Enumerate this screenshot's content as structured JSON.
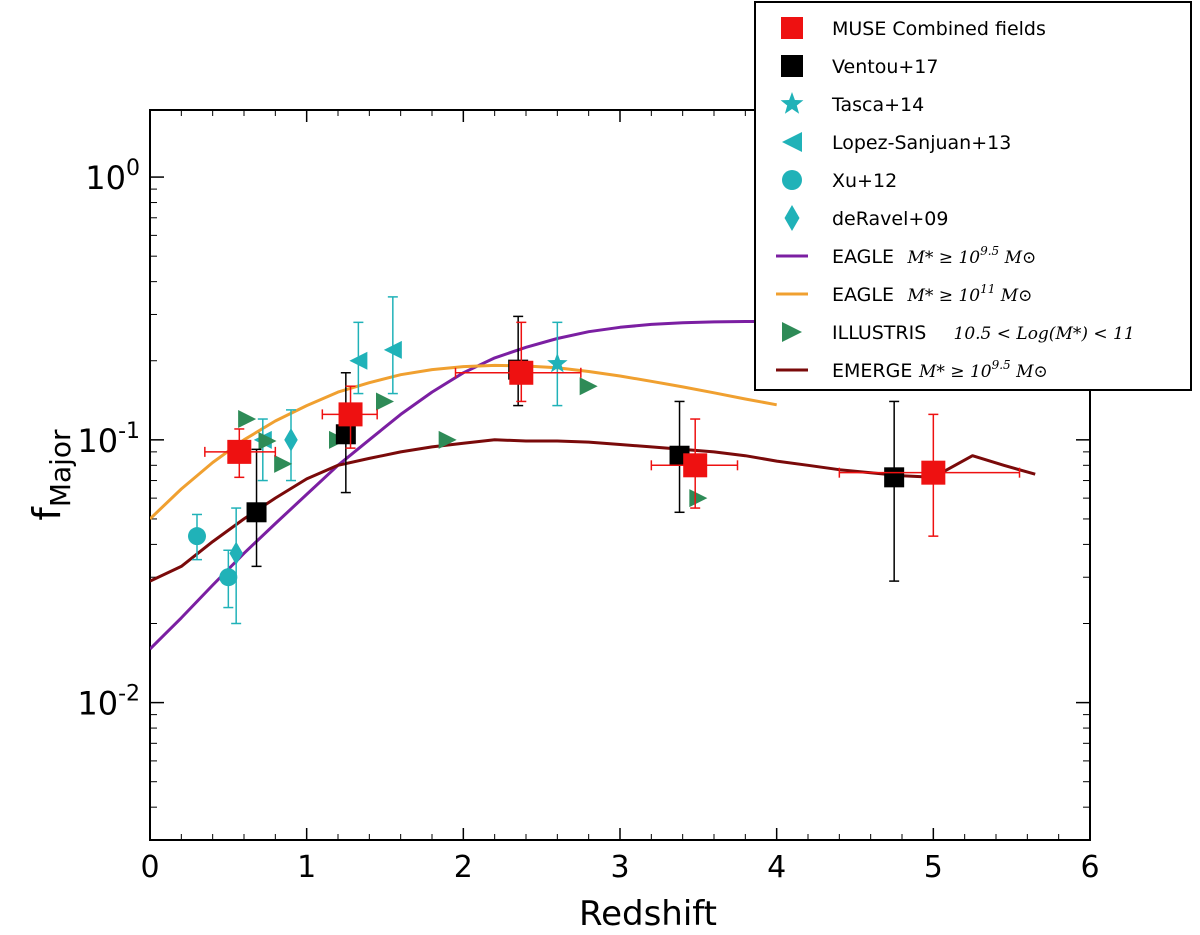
{
  "chart_data": {
    "type": "scatter",
    "xlabel": "Redshift",
    "ylabel": "f",
    "ylabel_sub": "Major",
    "xlim": [
      0,
      6
    ],
    "ylim": [
      0.003,
      1.8
    ],
    "yscale": "log",
    "x_ticks": [
      "0",
      "1",
      "2",
      "3",
      "4",
      "5",
      "6"
    ],
    "y_ticks": [
      {
        "value": 1,
        "base": "10",
        "exp": "0"
      },
      {
        "value": 0.1,
        "base": "10",
        "exp": "-1"
      },
      {
        "value": 0.01,
        "base": "10",
        "exp": "-2"
      }
    ],
    "legend_position": "top-right",
    "legend": [
      {
        "label": "MUSE Combined fields",
        "color": "#ee1111",
        "marker": "square"
      },
      {
        "label": "Ventou+17",
        "color": "#000000",
        "marker": "square"
      },
      {
        "label": "Tasca+14",
        "color": "#20b2b8",
        "marker": "star"
      },
      {
        "label": "Lopez-Sanjuan+13",
        "color": "#20b2b8",
        "marker": "triangle-left"
      },
      {
        "label": "Xu+12",
        "color": "#20b2b8",
        "marker": "circle"
      },
      {
        "label": "deRavel+09",
        "color": "#20b2b8",
        "marker": "diamond"
      },
      {
        "label": "EAGLE",
        "math": "M* ≥ 10^9.5 M⊙",
        "color": "#7b1fa2",
        "marker": "line"
      },
      {
        "label": "EAGLE",
        "math": "M* ≥ 10^11 M⊙",
        "color": "#f0a030",
        "marker": "line"
      },
      {
        "label": "ILLUSTRIS",
        "math": "10.5 < Log(M*) < 11",
        "color": "#2e8b57",
        "marker": "triangle-right"
      },
      {
        "label": "EMERGE",
        "math": "M* ≥ 10^9.5 M⊙",
        "color": "#7a0a0a",
        "marker": "line"
      }
    ],
    "series": [
      {
        "name": "MUSE Combined fields",
        "marker": "square",
        "color": "#ee1111",
        "points": [
          {
            "x": 0.57,
            "y": 0.09,
            "xlo": 0.35,
            "xhi": 0.8,
            "ylo": 0.072,
            "yhi": 0.11
          },
          {
            "x": 1.28,
            "y": 0.125,
            "xlo": 1.1,
            "xhi": 1.45,
            "ylo": 0.093,
            "yhi": 0.16
          },
          {
            "x": 2.37,
            "y": 0.18,
            "xlo": 1.95,
            "xhi": 2.75,
            "ylo": 0.14,
            "yhi": 0.28
          },
          {
            "x": 3.48,
            "y": 0.08,
            "xlo": 3.2,
            "xhi": 3.75,
            "ylo": 0.055,
            "yhi": 0.12
          },
          {
            "x": 5.0,
            "y": 0.075,
            "xlo": 4.4,
            "xhi": 5.55,
            "ylo": 0.043,
            "yhi": 0.125
          }
        ]
      },
      {
        "name": "Ventou+17",
        "marker": "square",
        "color": "#000000",
        "points": [
          {
            "x": 0.68,
            "y": 0.053,
            "ylo": 0.033,
            "yhi": 0.092
          },
          {
            "x": 1.25,
            "y": 0.105,
            "ylo": 0.063,
            "yhi": 0.18
          },
          {
            "x": 2.35,
            "y": 0.185,
            "ylo": 0.135,
            "yhi": 0.295
          },
          {
            "x": 3.38,
            "y": 0.087,
            "ylo": 0.053,
            "yhi": 0.14
          },
          {
            "x": 4.75,
            "y": 0.072,
            "ylo": 0.029,
            "yhi": 0.14
          }
        ]
      },
      {
        "name": "Tasca+14",
        "marker": "star",
        "color": "#20b2b8",
        "points": [
          {
            "x": 2.6,
            "y": 0.195,
            "ylo": 0.135,
            "yhi": 0.28
          }
        ]
      },
      {
        "name": "Lopez-Sanjuan+13",
        "marker": "triangle-left",
        "color": "#20b2b8",
        "points": [
          {
            "x": 1.33,
            "y": 0.2,
            "ylo": 0.15,
            "yhi": 0.28
          },
          {
            "x": 1.55,
            "y": 0.22,
            "ylo": 0.15,
            "yhi": 0.35
          },
          {
            "x": 0.72,
            "y": 0.1,
            "ylo": 0.07,
            "yhi": 0.12
          }
        ]
      },
      {
        "name": "Xu+12",
        "marker": "circle",
        "color": "#20b2b8",
        "points": [
          {
            "x": 0.3,
            "y": 0.043,
            "ylo": 0.035,
            "yhi": 0.052
          },
          {
            "x": 0.5,
            "y": 0.03,
            "ylo": 0.023,
            "yhi": 0.038
          }
        ]
      },
      {
        "name": "deRavel+09",
        "marker": "diamond",
        "color": "#20b2b8",
        "points": [
          {
            "x": 0.55,
            "y": 0.037,
            "ylo": 0.02,
            "yhi": 0.055
          },
          {
            "x": 0.9,
            "y": 0.1,
            "ylo": 0.07,
            "yhi": 0.13
          }
        ]
      },
      {
        "name": "ILLUSTRIS",
        "marker": "triangle-right",
        "color": "#2e8b57",
        "points": [
          {
            "x": 0.62,
            "y": 0.12
          },
          {
            "x": 0.75,
            "y": 0.099
          },
          {
            "x": 0.85,
            "y": 0.081
          },
          {
            "x": 1.2,
            "y": 0.1
          },
          {
            "x": 1.5,
            "y": 0.14
          },
          {
            "x": 1.9,
            "y": 0.1
          },
          {
            "x": 2.8,
            "y": 0.16
          },
          {
            "x": 3.5,
            "y": 0.06
          }
        ]
      },
      {
        "name": "EAGLE",
        "type": "line",
        "color": "#7b1fa2",
        "x": [
          0,
          0.2,
          0.4,
          0.6,
          0.8,
          1.0,
          1.2,
          1.4,
          1.6,
          1.8,
          2.0,
          2.2,
          2.4,
          2.6,
          2.8,
          3.0,
          3.2,
          3.4,
          3.6,
          3.8,
          4.0
        ],
        "y": [
          0.016,
          0.021,
          0.028,
          0.037,
          0.048,
          0.062,
          0.08,
          0.1,
          0.125,
          0.152,
          0.18,
          0.205,
          0.225,
          0.243,
          0.258,
          0.268,
          0.275,
          0.279,
          0.281,
          0.282,
          0.282
        ]
      },
      {
        "name": "EAGLE",
        "type": "line",
        "color": "#f0a030",
        "x": [
          0,
          0.2,
          0.4,
          0.6,
          0.8,
          1.0,
          1.2,
          1.4,
          1.6,
          1.8,
          2.0,
          2.2,
          2.4,
          2.6,
          2.8,
          3.0,
          3.2,
          3.4,
          3.6,
          3.8,
          4.0
        ],
        "y": [
          0.05,
          0.065,
          0.082,
          0.1,
          0.118,
          0.135,
          0.152,
          0.165,
          0.177,
          0.185,
          0.19,
          0.192,
          0.191,
          0.188,
          0.182,
          0.175,
          0.167,
          0.159,
          0.151,
          0.143,
          0.136
        ]
      },
      {
        "name": "EMERGE",
        "type": "line",
        "color": "#7a0a0a",
        "x": [
          0,
          0.2,
          0.4,
          0.6,
          0.8,
          1.0,
          1.2,
          1.4,
          1.6,
          1.8,
          2.0,
          2.2,
          2.4,
          2.6,
          2.8,
          3.0,
          3.2,
          3.4,
          3.6,
          3.8,
          4.0,
          4.2,
          4.4,
          4.6,
          4.8,
          5.0,
          5.25,
          5.45,
          5.65
        ],
        "y": [
          0.029,
          0.033,
          0.041,
          0.05,
          0.06,
          0.071,
          0.08,
          0.085,
          0.09,
          0.094,
          0.097,
          0.1,
          0.099,
          0.099,
          0.098,
          0.096,
          0.094,
          0.092,
          0.09,
          0.087,
          0.083,
          0.08,
          0.077,
          0.075,
          0.073,
          0.072,
          0.087,
          0.08,
          0.074
        ]
      }
    ]
  }
}
